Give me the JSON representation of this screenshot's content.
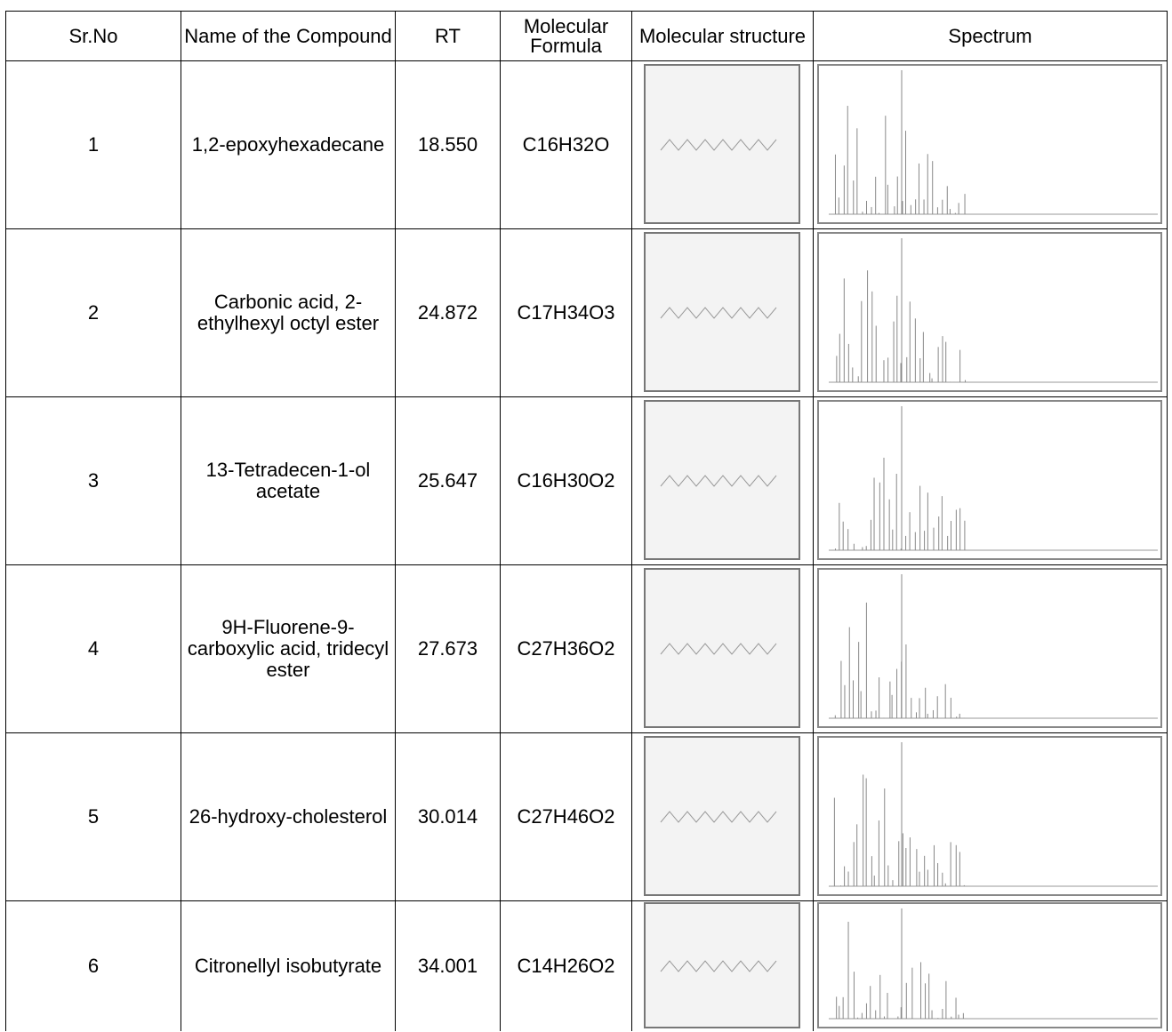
{
  "table": {
    "header": [
      "Sr.No",
      "Name of the Compound",
      "RT",
      "Molecular Formula",
      "Molecular structure",
      "Spectrum"
    ],
    "rows": [
      [
        "1",
        "1,2-epoxyhexadecane",
        "18.550",
        "C16H32O"
      ],
      [
        "2",
        "Carbonic acid, 2-ethylhexyl octyl ester",
        "24.872",
        "C17H34O3"
      ],
      [
        "3",
        "13-Tetradecen-1-ol acetate",
        "25.647",
        "C16H30O2"
      ],
      [
        "4",
        "9H-Fluorene-9-carboxylic acid, tridecyl ester",
        "27.673",
        "C27H36O2"
      ],
      [
        "5",
        "26-hydroxy-cholesterol",
        "30.014",
        "C27H46O2"
      ],
      [
        "6",
        "Citronellyl isobutyrate",
        "34.001",
        "C14H26O2"
      ]
    ]
  }
}
